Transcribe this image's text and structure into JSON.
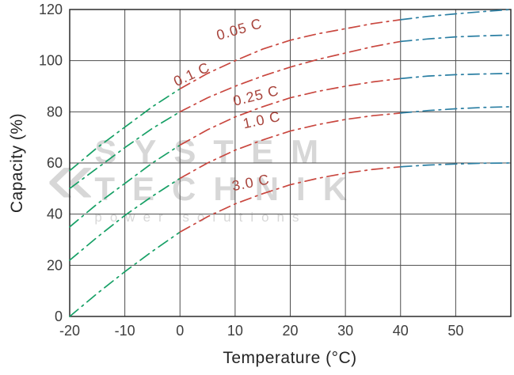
{
  "watermark": {
    "logo_glyph": "«",
    "line1": "SYSTEM",
    "line2": "TECHNIK",
    "line3": "power solutions",
    "color": "#d7d7d7"
  },
  "chart_data": {
    "type": "line",
    "title": "",
    "xlabel": "Temperature (°C)",
    "ylabel": "Capacity (%)",
    "xlim": [
      -20,
      60
    ],
    "ylim": [
      0,
      120
    ],
    "x_ticks": [
      -20,
      -10,
      0,
      10,
      20,
      30,
      40,
      50
    ],
    "y_ticks": [
      0,
      20,
      40,
      60,
      80,
      100,
      120
    ],
    "grid": true,
    "line_style": "dash-dot",
    "label_color": "#a8443c",
    "grid_color": "#4d4d4d",
    "border_color": "#2b2b2b",
    "segment_breaks": [
      0,
      40
    ],
    "segment_colors": {
      "cold": "#17a066",
      "mid": "#c9473f",
      "hot": "#2b7fa3"
    },
    "x": [
      -20,
      -15,
      -10,
      -5,
      0,
      5,
      10,
      15,
      20,
      25,
      30,
      35,
      40,
      45,
      50,
      55,
      60
    ],
    "series": [
      {
        "name": "0.05 C",
        "values": [
          57,
          66,
          74,
          82,
          89,
          95,
          100,
          104.5,
          108,
          110.5,
          112.5,
          114.5,
          116,
          117.3,
          118.3,
          119.2,
          120
        ],
        "label_pos": {
          "x": 11,
          "y": 110.5,
          "angle": -16
        }
      },
      {
        "name": "0.1 C",
        "values": [
          50,
          58,
          66,
          73.5,
          80,
          85.5,
          90,
          94,
          97.5,
          100.5,
          103,
          105.5,
          107.5,
          108.5,
          109.3,
          109.7,
          110
        ],
        "label_pos": {
          "x": 2.5,
          "y": 93,
          "angle": -25
        }
      },
      {
        "name": "0.25 C",
        "values": [
          35,
          44,
          52,
          60,
          67,
          73,
          78,
          82,
          85.5,
          88,
          90,
          91.7,
          93,
          94,
          94.5,
          94.8,
          95
        ],
        "label_pos": {
          "x": 14,
          "y": 84.5,
          "angle": -14
        }
      },
      {
        "name": "1.0 C",
        "values": [
          22,
          31,
          39.5,
          47,
          54,
          60,
          65,
          69,
          72.5,
          75,
          77,
          78.5,
          79.5,
          80.5,
          81.2,
          81.7,
          82
        ],
        "label_pos": {
          "x": 15,
          "y": 75,
          "angle": -12
        }
      },
      {
        "name": "3.0 C",
        "values": [
          0,
          9,
          17.5,
          25.5,
          33,
          39,
          44,
          48,
          51.5,
          54,
          56,
          57.5,
          58.5,
          59.2,
          59.6,
          59.9,
          60
        ],
        "label_pos": {
          "x": 13,
          "y": 50.5,
          "angle": -11
        }
      }
    ]
  }
}
